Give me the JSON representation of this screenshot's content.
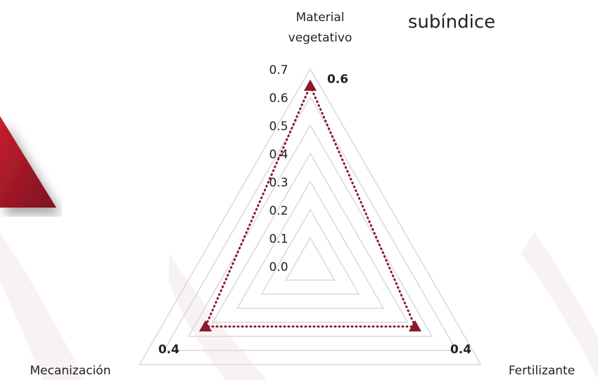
{
  "chart_data": {
    "type": "radar",
    "title": "subíndice",
    "categories": [
      "Material vegetativo",
      "Fertilizante",
      "Mecanización"
    ],
    "series": [
      {
        "color": "#8b1a2a",
        "values": [
          0.64,
          0.43,
          0.43
        ],
        "value_labels": [
          "0.6",
          "0.4",
          "0.4"
        ]
      }
    ],
    "rlim": [
      0,
      0.7
    ],
    "rticks": [
      {
        "value": 0,
        "label": "0.0"
      },
      0.1,
      0.2,
      0.3,
      0.4,
      0.5,
      0.6,
      0.7
    ],
    "grid": true
  }
}
